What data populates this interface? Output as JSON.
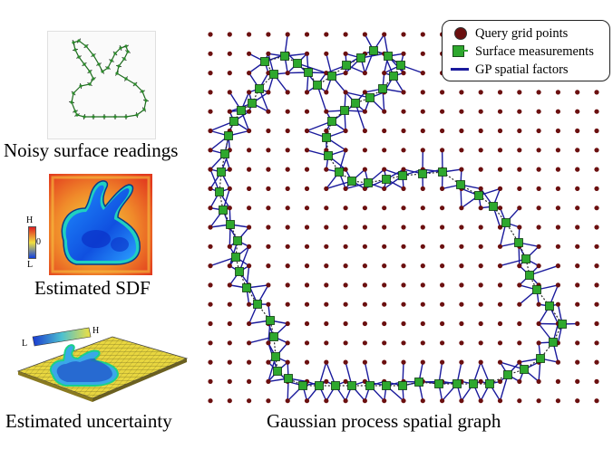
{
  "captions": {
    "noisy": "Noisy surface readings",
    "sdf": "Estimated SDF",
    "uncertainty": "Estimated uncertainty",
    "graph": "Gaussian process spatial graph"
  },
  "sdf_colorbar": {
    "high": "H",
    "zero": "0",
    "low": "L"
  },
  "uncertainty_colorbar": {
    "low": "L",
    "high": "H"
  },
  "legend": {
    "query": "Query grid points",
    "surface": "Surface measurements",
    "factors": "GP spatial factors"
  },
  "colors": {
    "query_point": "#6b0f0f",
    "surface_point": "#2ea82e",
    "factor_edge": "#1a1a9c",
    "noisy_outline": "#1e6b1e"
  }
}
